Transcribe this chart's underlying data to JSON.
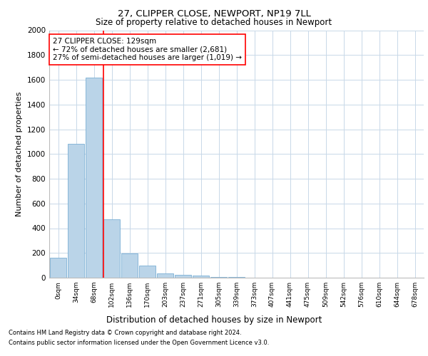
{
  "title1": "27, CLIPPER CLOSE, NEWPORT, NP19 7LL",
  "title2": "Size of property relative to detached houses in Newport",
  "xlabel": "Distribution of detached houses by size in Newport",
  "ylabel": "Number of detached properties",
  "categories": [
    "0sqm",
    "34sqm",
    "68sqm",
    "102sqm",
    "136sqm",
    "170sqm",
    "203sqm",
    "237sqm",
    "271sqm",
    "305sqm",
    "339sqm",
    "373sqm",
    "407sqm",
    "441sqm",
    "475sqm",
    "509sqm",
    "542sqm",
    "576sqm",
    "610sqm",
    "644sqm",
    "678sqm"
  ],
  "values": [
    160,
    1080,
    1620,
    470,
    195,
    95,
    35,
    25,
    15,
    5,
    3,
    0,
    0,
    0,
    0,
    0,
    0,
    0,
    0,
    0,
    0
  ],
  "bar_color": "#bad4e8",
  "bar_edge_color": "#7aafd4",
  "red_line_x": 3,
  "ylim": [
    0,
    2000
  ],
  "ytick_max": 2000,
  "ytick_step": 200,
  "annotation_text": "27 CLIPPER CLOSE: 129sqm\n← 72% of detached houses are smaller (2,681)\n27% of semi-detached houses are larger (1,019) →",
  "footnote1": "Contains HM Land Registry data © Crown copyright and database right 2024.",
  "footnote2": "Contains public sector information licensed under the Open Government Licence v3.0.",
  "background_color": "#ffffff",
  "grid_color": "#c8d8e8",
  "title1_fontsize": 9.5,
  "title2_fontsize": 8.5,
  "ylabel_fontsize": 8,
  "xlabel_fontsize": 8.5,
  "ytick_fontsize": 7.5,
  "xtick_fontsize": 6.5,
  "ann_fontsize": 7.5,
  "footnote_fontsize": 6
}
